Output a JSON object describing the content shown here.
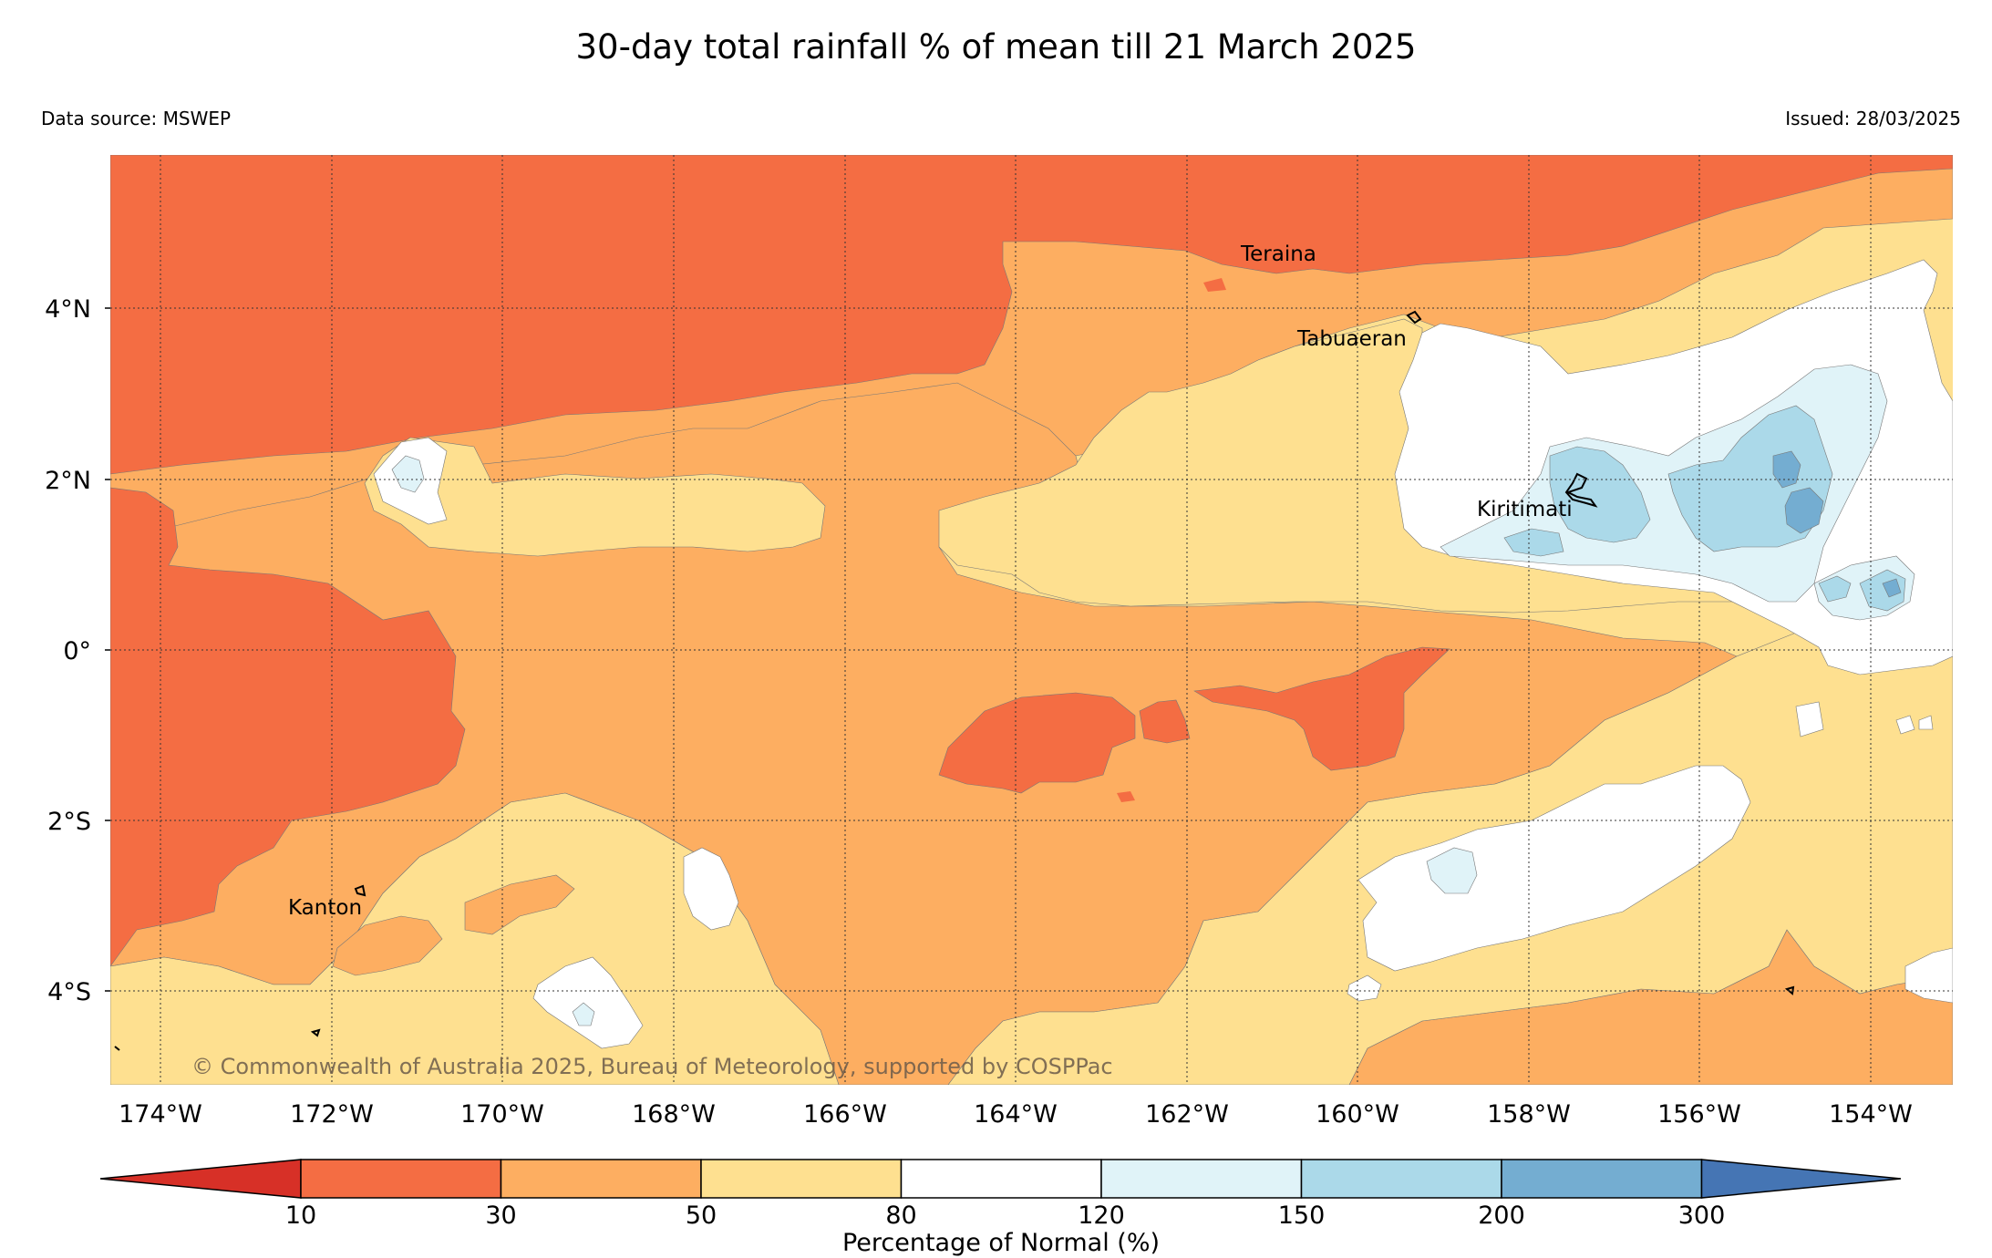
{
  "header": {
    "title": "30-day total rainfall % of mean till 21 March 2025",
    "data_source": "Data source: MSWEP",
    "issued": "Issued: 28/03/2025"
  },
  "map": {
    "lon_labels": [
      "174°W",
      "172°W",
      "170°W",
      "168°W",
      "166°W",
      "164°W",
      "162°W",
      "160°W",
      "158°W",
      "156°W",
      "154°W"
    ],
    "lat_labels": [
      "4°N",
      "2°N",
      "0°",
      "2°S",
      "4°S"
    ],
    "places": {
      "teraina": "Teraina",
      "tabuaeran": "Tabuaeran",
      "kiritimati": "Kiritimati",
      "kanton": "Kanton"
    },
    "copyright": "© Commonwealth of Australia 2025, Bureau of Meteorology, supported by COSPPac"
  },
  "colorbar": {
    "ticks": [
      "10",
      "30",
      "50",
      "80",
      "120",
      "150",
      "200",
      "300"
    ],
    "label": "Percentage of Normal (%)",
    "colors": {
      "lt10": "#d73027",
      "10-30": "#f46d43",
      "30-50": "#fdae61",
      "50-80": "#fee090",
      "80-120": "#ffffff",
      "120-150": "#e0f3f8",
      "150-200": "#abd9e9",
      "200-300": "#74add1",
      "gt300": "#4575b4"
    }
  }
}
